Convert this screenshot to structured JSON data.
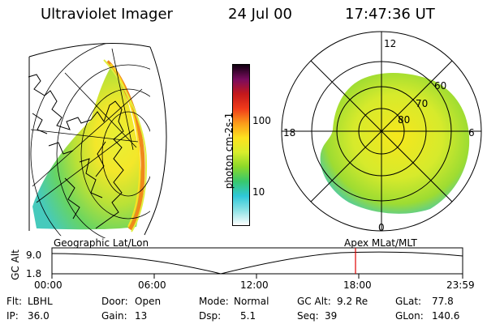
{
  "header": {
    "title": "Ultraviolet Imager",
    "date": "24 Jul 00",
    "time": "17:47:36 UT"
  },
  "colorbar": {
    "label": "photon cm-2s-1",
    "ticks": [
      "100",
      "10"
    ],
    "gradient": [
      "#ffffff",
      "#8fe3e6",
      "#2fc8d9",
      "#38c86d",
      "#8bd82a",
      "#d8ee2c",
      "#fde21f",
      "#fb9a1a",
      "#ef3a1a",
      "#c4181b",
      "#7a0c5e",
      "#100010"
    ]
  },
  "polar_plot": {
    "mlt_labels": {
      "top": "12",
      "left": "18",
      "right": "6",
      "bottom": "0"
    },
    "lat_labels": [
      "60",
      "70",
      "80"
    ]
  },
  "timeline": {
    "left_label": "Geographic Lat/Lon",
    "right_label": "Apex MLat/MLT",
    "y_axis_label": "GC Alt",
    "y_ticks": [
      "9.0",
      "1.8"
    ],
    "x_ticks": [
      "00:00",
      "06:00",
      "12:00",
      "18:00",
      "23:59"
    ],
    "current_time_marker_color": "#e00000"
  },
  "info": {
    "row1": [
      {
        "key": "Flt:",
        "value": "LBHL"
      },
      {
        "key": "Door:",
        "value": "Open"
      },
      {
        "key": "Mode:",
        "value": "Normal"
      },
      {
        "key": "GC Alt:",
        "value": "9.2 Re"
      },
      {
        "key": "GLat:",
        "value": "77.8"
      }
    ],
    "row2": [
      {
        "key": "IP:",
        "value": "36.0"
      },
      {
        "key": "Gain:",
        "value": "13"
      },
      {
        "key": "Dsp:",
        "value": "5.1"
      },
      {
        "key": "Seq:",
        "value": "39"
      },
      {
        "key": "GLon:",
        "value": "140.6"
      }
    ]
  }
}
